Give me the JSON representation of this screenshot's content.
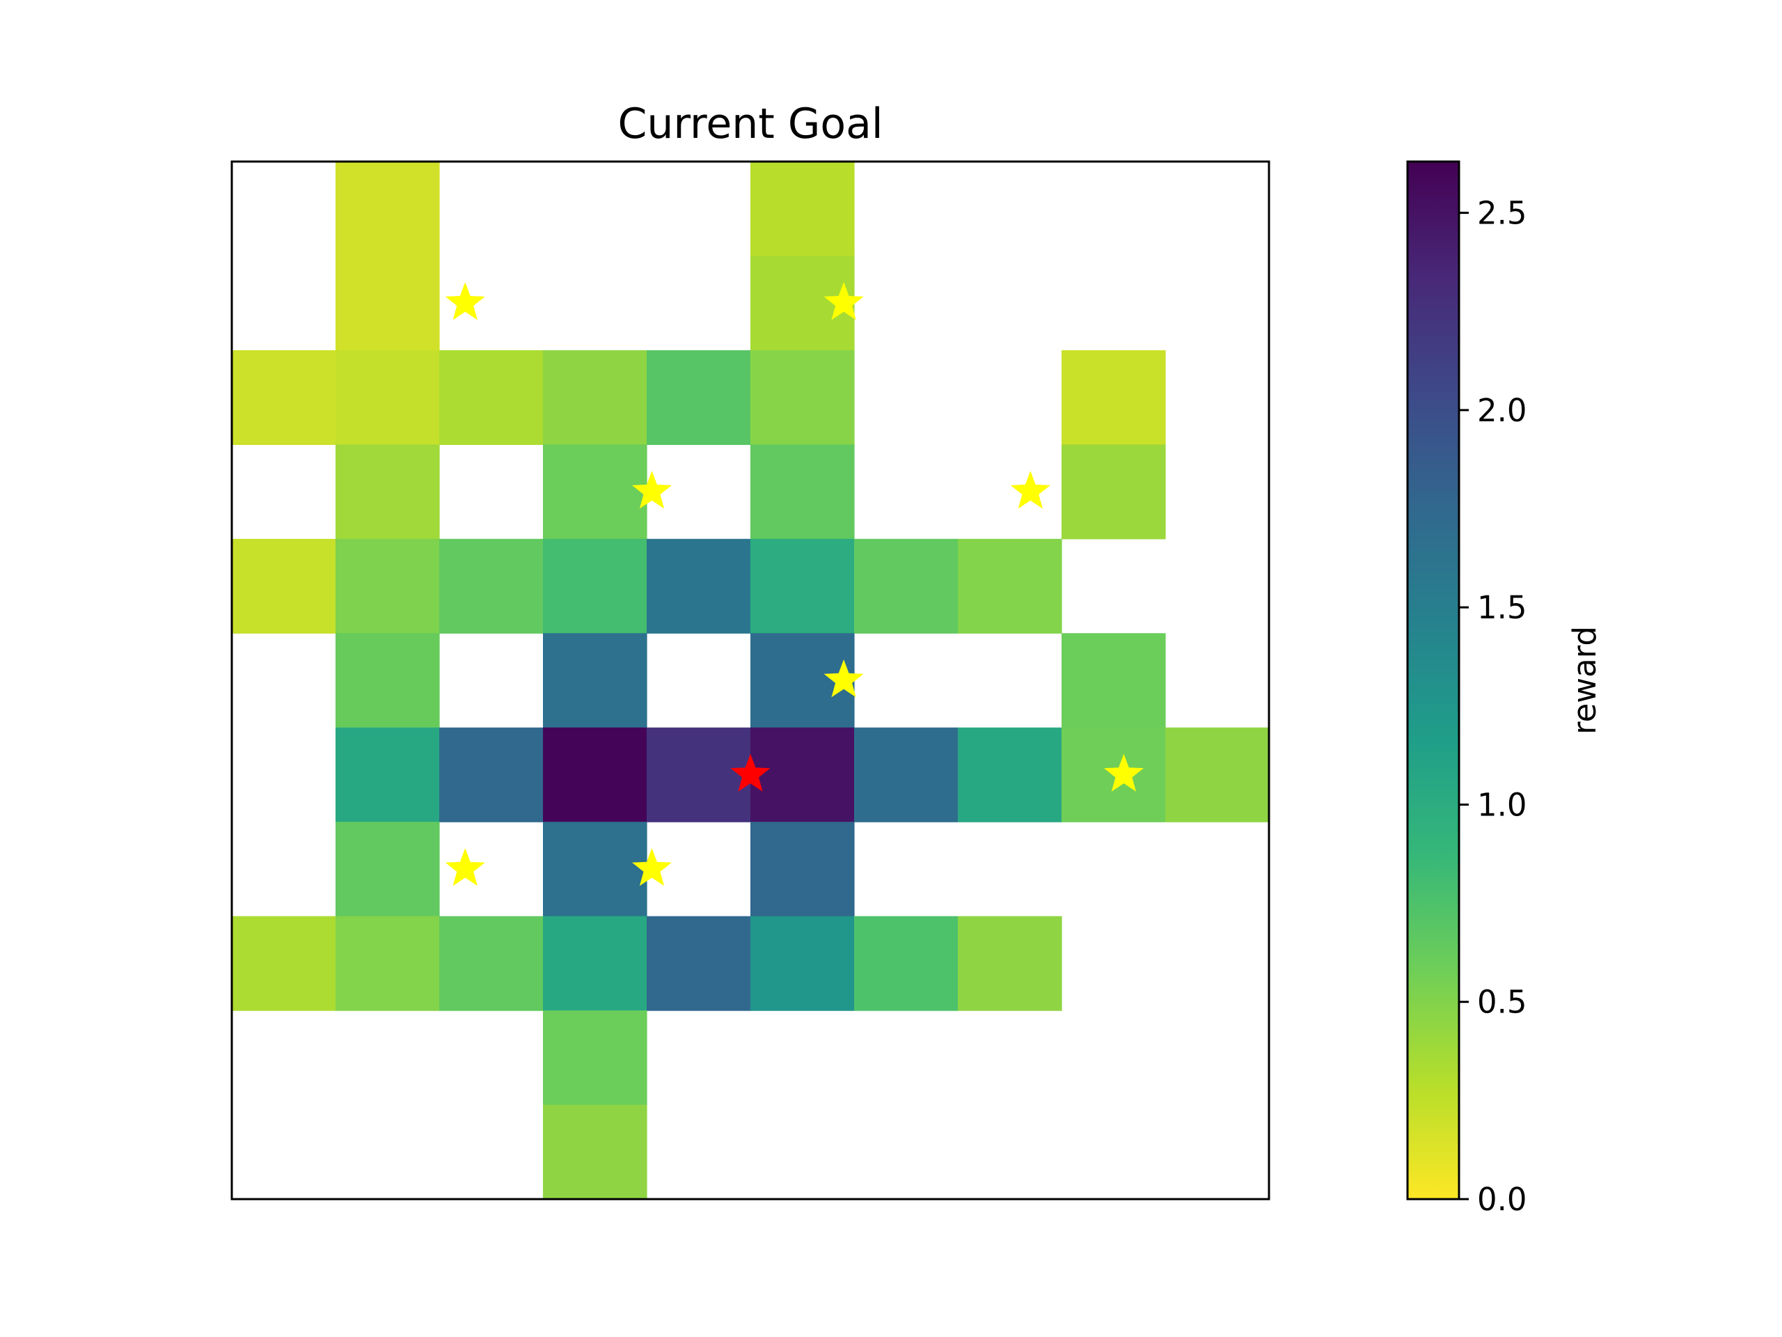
{
  "chart_data": {
    "type": "heatmap",
    "title": "Current Goal",
    "colorbar": {
      "label": "reward",
      "range": [
        0.0,
        2.63
      ],
      "ticks": [
        0.0,
        0.5,
        1.0,
        1.5,
        2.0,
        2.5
      ],
      "tick_labels": [
        "0.0",
        "0.5",
        "1.0",
        "1.5",
        "2.0",
        "2.5"
      ],
      "colormap": "viridis_r"
    },
    "grid": {
      "rows": 11,
      "cols": 10,
      "axis_ticks": false
    },
    "cells": [
      [
        null,
        0.18,
        null,
        null,
        null,
        0.28,
        null,
        null,
        null,
        null
      ],
      [
        null,
        0.18,
        null,
        null,
        null,
        0.35,
        null,
        null,
        null,
        null
      ],
      [
        0.2,
        0.23,
        0.33,
        0.45,
        0.7,
        0.48,
        null,
        null,
        0.21,
        null
      ],
      [
        null,
        0.38,
        null,
        0.6,
        null,
        0.65,
        null,
        null,
        0.4,
        null
      ],
      [
        0.22,
        0.52,
        0.65,
        0.8,
        1.6,
        1.0,
        0.65,
        0.5,
        null,
        null
      ],
      [
        null,
        0.62,
        null,
        1.65,
        null,
        1.7,
        null,
        null,
        0.6,
        null
      ],
      [
        null,
        1.05,
        1.75,
        2.6,
        2.25,
        2.5,
        1.7,
        1.05,
        0.58,
        0.45
      ],
      [
        null,
        0.65,
        null,
        1.65,
        null,
        1.75,
        null,
        null,
        null,
        null
      ],
      [
        0.33,
        0.5,
        0.65,
        1.05,
        1.75,
        1.25,
        0.75,
        0.45,
        null,
        null
      ],
      [
        null,
        null,
        null,
        0.6,
        null,
        null,
        null,
        null,
        null,
        null
      ],
      [
        null,
        null,
        null,
        0.45,
        null,
        null,
        null,
        null,
        null,
        null
      ]
    ],
    "markers": [
      {
        "type": "star",
        "color": "#ffff00",
        "x": 2.25,
        "y": 1.5
      },
      {
        "type": "star",
        "color": "#ffff00",
        "x": 5.9,
        "y": 1.5
      },
      {
        "type": "star",
        "color": "#ffff00",
        "x": 4.05,
        "y": 3.5
      },
      {
        "type": "star",
        "color": "#ffff00",
        "x": 7.7,
        "y": 3.5
      },
      {
        "type": "star",
        "color": "#ffff00",
        "x": 5.9,
        "y": 5.5
      },
      {
        "type": "star",
        "color": "#ffff00",
        "x": 8.6,
        "y": 6.5
      },
      {
        "type": "star",
        "color": "#ffff00",
        "x": 2.25,
        "y": 7.5
      },
      {
        "type": "star",
        "color": "#ffff00",
        "x": 4.05,
        "y": 7.5
      },
      {
        "type": "star",
        "color": "#ff0000",
        "x": 5.0,
        "y": 6.5
      }
    ]
  }
}
